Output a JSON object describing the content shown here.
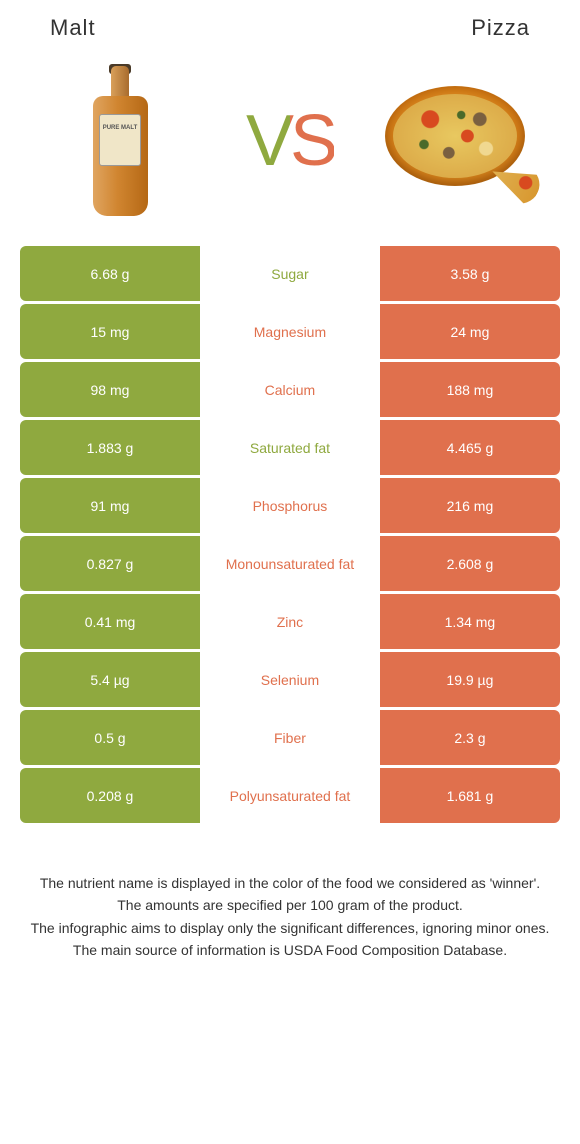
{
  "colors": {
    "left_bg": "#8fa93f",
    "right_bg": "#e0704d",
    "left_text_accent": "#8fa93f",
    "right_text_accent": "#e0704d",
    "vs_gradient_left": "#8fa93f",
    "vs_gradient_right": "#e0704d",
    "cell_text": "#ffffff",
    "footnote_text": "#333333"
  },
  "header": {
    "left": "Malt",
    "right": "Pizza"
  },
  "vs": "VS",
  "rows": [
    {
      "left": "6.68 g",
      "label": "Sugar",
      "right": "3.58 g",
      "winner": "left"
    },
    {
      "left": "15 mg",
      "label": "Magnesium",
      "right": "24 mg",
      "winner": "right"
    },
    {
      "left": "98 mg",
      "label": "Calcium",
      "right": "188 mg",
      "winner": "right"
    },
    {
      "left": "1.883 g",
      "label": "Saturated fat",
      "right": "4.465 g",
      "winner": "left"
    },
    {
      "left": "91 mg",
      "label": "Phosphorus",
      "right": "216 mg",
      "winner": "right"
    },
    {
      "left": "0.827 g",
      "label": "Monounsaturated fat",
      "right": "2.608 g",
      "winner": "right"
    },
    {
      "left": "0.41 mg",
      "label": "Zinc",
      "right": "1.34 mg",
      "winner": "right"
    },
    {
      "left": "5.4 µg",
      "label": "Selenium",
      "right": "19.9 µg",
      "winner": "right"
    },
    {
      "left": "0.5 g",
      "label": "Fiber",
      "right": "2.3 g",
      "winner": "right"
    },
    {
      "left": "0.208 g",
      "label": "Polyunsaturated fat",
      "right": "1.681 g",
      "winner": "right"
    }
  ],
  "footnotes": [
    "The nutrient name is displayed in the color of the food we considered as 'winner'.",
    "The amounts are specified per 100 gram of the product.",
    "The infographic aims to display only the significant differences, ignoring minor ones.",
    "The main source of information is USDA Food Composition Database."
  ]
}
